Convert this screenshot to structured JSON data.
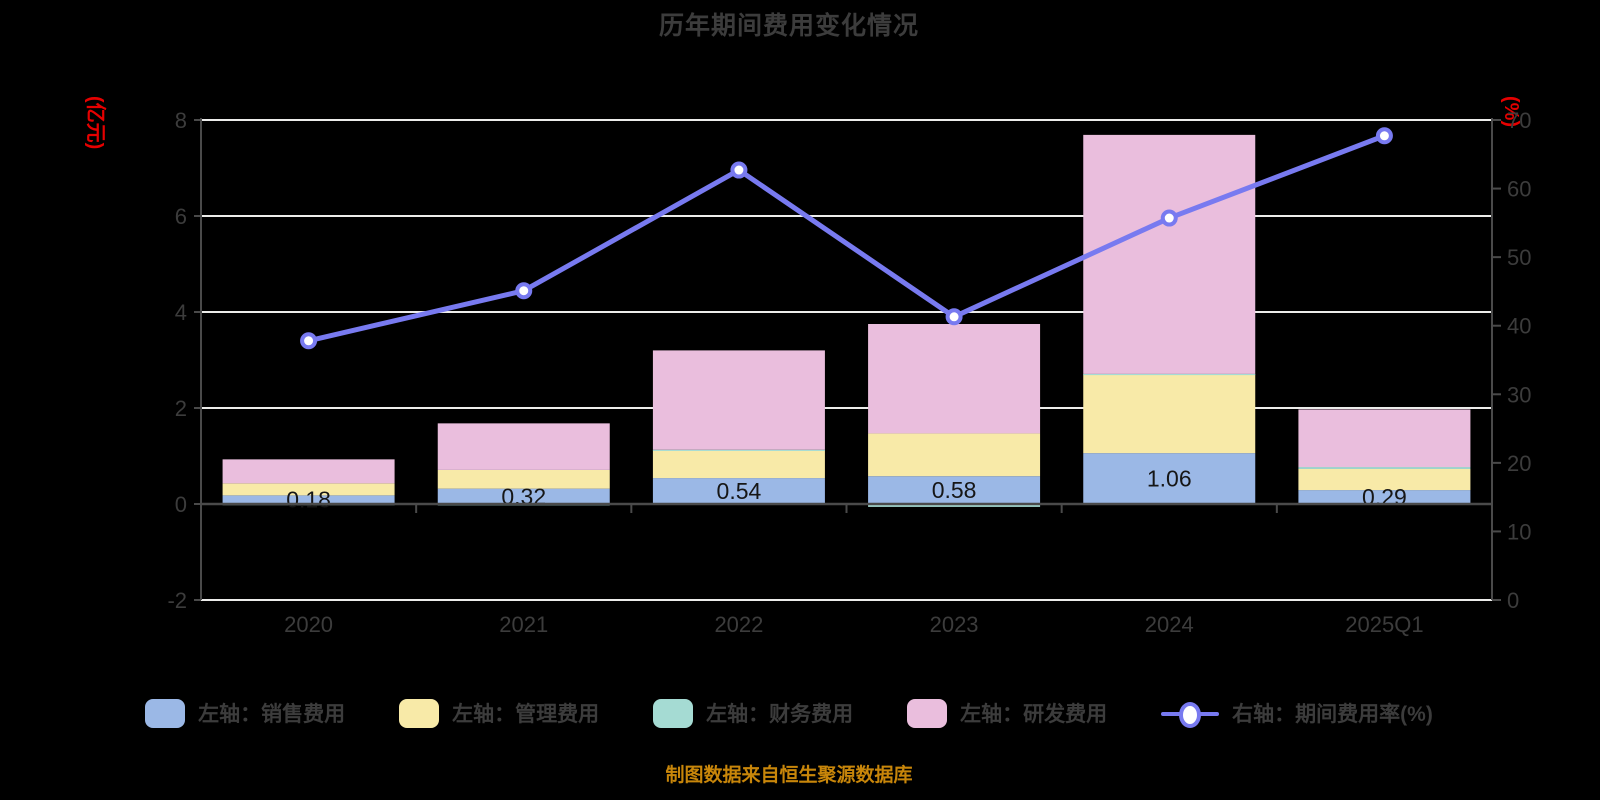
{
  "title": "历年期间费用变化情况",
  "footer": "制图数据来自恒生聚源数据库",
  "left_axis": {
    "unit": "(亿元)",
    "min": -2,
    "max": 8,
    "ticks": [
      8,
      6,
      4,
      2,
      0,
      -2
    ]
  },
  "right_axis": {
    "unit": "(%)",
    "min": 0,
    "max": 70,
    "ticks": [
      70,
      60,
      50,
      40,
      30,
      20,
      10,
      0
    ]
  },
  "colors": {
    "background": "#000000",
    "grid": "#ececea",
    "spine": "#4a4a4a",
    "text": "#3c3c3c",
    "axis_unit": "#e60000",
    "bar_label": "#161616",
    "line": "#787af0",
    "footer": "#c8860a"
  },
  "chart_data": {
    "type": "bar",
    "subtype": "stacked-bars-with-line",
    "categories": [
      "2020",
      "2021",
      "2022",
      "2023",
      "2024",
      "2025Q1"
    ],
    "series": [
      {
        "name": "左轴：销售费用",
        "type": "bar",
        "axis": "left",
        "color": "#9bb8e6",
        "values": [
          0.18,
          0.32,
          0.54,
          0.58,
          1.06,
          0.29
        ]
      },
      {
        "name": "左轴：管理费用",
        "type": "bar",
        "axis": "left",
        "color": "#f8eaa8",
        "values": [
          0.25,
          0.39,
          0.58,
          0.89,
          1.64,
          0.44
        ]
      },
      {
        "name": "左轴：财务费用",
        "type": "bar",
        "axis": "left",
        "color": "#a5dbd3",
        "values": [
          -0.01,
          -0.03,
          0.01,
          -0.06,
          0.01,
          0.04
        ]
      },
      {
        "name": "左轴：研发费用",
        "type": "bar",
        "axis": "left",
        "color": "#eabedd",
        "values": [
          0.5,
          0.97,
          2.07,
          2.28,
          4.98,
          1.2
        ]
      },
      {
        "name": "右轴：期间费用率(%)",
        "type": "line",
        "axis": "right",
        "color": "#787af0",
        "values": [
          37.8,
          45.1,
          62.7,
          41.3,
          55.7,
          67.7
        ]
      }
    ],
    "bar_labels": [
      "0.18",
      "0.32",
      "0.54",
      "0.58",
      "1.06",
      "0.29"
    ],
    "ylim_left": [
      -2,
      8
    ],
    "ylim_right": [
      0,
      70
    ],
    "grid": "horizontal-only",
    "legend_position": "bottom"
  }
}
